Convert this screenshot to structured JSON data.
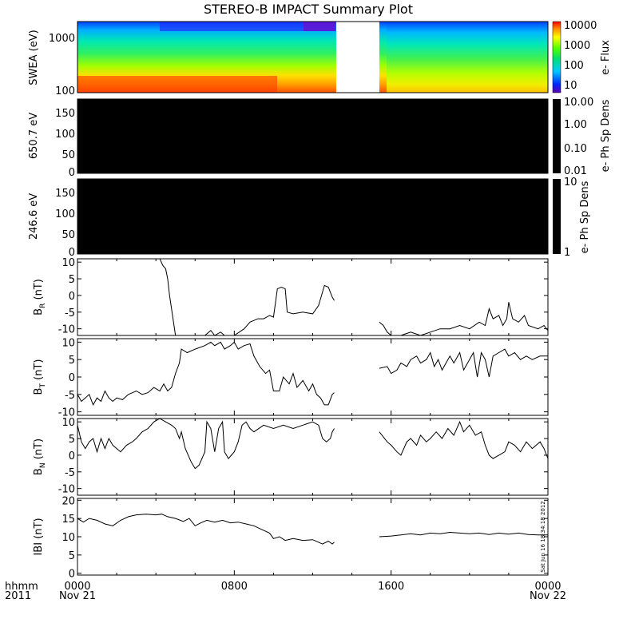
{
  "chart_data": {
    "type": "line",
    "title": "STEREO-B IMPACT Summary Plot",
    "x_range_hours": [
      0,
      24
    ],
    "x_ticks": [
      {
        "label": "0000",
        "sub": "Nov 21",
        "hour": 0
      },
      {
        "label": "0800",
        "sub": "",
        "hour": 8
      },
      {
        "label": "1600",
        "sub": "",
        "hour": 16
      },
      {
        "label": "0000",
        "sub": "Nov 22",
        "hour": 24
      }
    ],
    "x_corner_labels": [
      "hhmm",
      "2011"
    ],
    "data_gap_hours": [
      13.2,
      15.4
    ],
    "timestamp": "Sat Jun 16 18:34:18 2012",
    "spectrogram": {
      "ylabel": "SWEA (eV)",
      "yticks": [
        "1000",
        "100"
      ],
      "colorbar_label": "e- Flux",
      "colorbar_ticks": [
        "10000",
        "1000",
        "100",
        "10"
      ]
    },
    "pad_panels": [
      {
        "ylabel": "650.7 eV",
        "yticks": [
          "150",
          "100",
          "50",
          "0"
        ],
        "colorbar_label": "e- Ph Sp Dens",
        "colorbar_ticks": [
          "10.00",
          "1.00",
          "0.10",
          "0.01"
        ]
      },
      {
        "ylabel": "246.6 eV",
        "yticks": [
          "150",
          "100",
          "50",
          "0"
        ],
        "colorbar_label": "e- Ph Sp Dens",
        "colorbar_ticks": [
          "10",
          "1"
        ]
      }
    ],
    "series": [
      {
        "name": "B_R",
        "ylabel": "B",
        "ysub": "R",
        "yunit": "(nT)",
        "ylim": [
          -12,
          11
        ],
        "yticks": [
          "10",
          "5",
          "0",
          "-5",
          "-10"
        ],
        "points": [
          [
            4.2,
            11
          ],
          [
            4.35,
            9
          ],
          [
            4.5,
            8
          ],
          [
            4.6,
            5
          ],
          [
            4.7,
            0
          ],
          [
            4.85,
            -6
          ],
          [
            5.0,
            -12
          ],
          [
            5.5,
            -12
          ],
          [
            6.5,
            -12
          ],
          [
            6.8,
            -10.5
          ],
          [
            7.0,
            -12
          ],
          [
            7.3,
            -11
          ],
          [
            7.5,
            -12
          ],
          [
            8.0,
            -12
          ],
          [
            8.5,
            -10
          ],
          [
            8.8,
            -8
          ],
          [
            9.2,
            -7
          ],
          [
            9.5,
            -7
          ],
          [
            9.8,
            -6
          ],
          [
            10.0,
            -6.5
          ],
          [
            10.2,
            2
          ],
          [
            10.4,
            2.5
          ],
          [
            10.6,
            2
          ],
          [
            10.7,
            -5
          ],
          [
            11.0,
            -5.5
          ],
          [
            11.5,
            -5
          ],
          [
            12.0,
            -5.5
          ],
          [
            12.3,
            -3
          ],
          [
            12.6,
            3
          ],
          [
            12.8,
            2.5
          ],
          [
            13.0,
            -0.5
          ],
          [
            13.1,
            -1.5
          ],
          [
            null,
            null
          ],
          [
            15.4,
            -8
          ],
          [
            15.6,
            -9
          ],
          [
            15.8,
            -11
          ],
          [
            16.0,
            -12
          ],
          [
            16.5,
            -12
          ],
          [
            17.0,
            -11
          ],
          [
            17.5,
            -12
          ],
          [
            18.0,
            -11
          ],
          [
            18.5,
            -10
          ],
          [
            19.0,
            -10
          ],
          [
            19.5,
            -9
          ],
          [
            20.0,
            -10
          ],
          [
            20.5,
            -8
          ],
          [
            20.8,
            -9
          ],
          [
            21.0,
            -4
          ],
          [
            21.2,
            -7
          ],
          [
            21.5,
            -6
          ],
          [
            21.7,
            -9
          ],
          [
            21.9,
            -7
          ],
          [
            22.0,
            -2
          ],
          [
            22.2,
            -7
          ],
          [
            22.5,
            -8
          ],
          [
            22.8,
            -6
          ],
          [
            23.0,
            -9
          ],
          [
            23.5,
            -10
          ],
          [
            23.8,
            -9
          ],
          [
            24.0,
            -10.5
          ]
        ]
      },
      {
        "name": "B_T",
        "ylabel": "B",
        "ysub": "T",
        "yunit": "(nT)",
        "ylim": [
          -11,
          11
        ],
        "yticks": [
          "10",
          "5",
          "0",
          "-5",
          "-10"
        ],
        "points": [
          [
            0.0,
            -5
          ],
          [
            0.2,
            -7
          ],
          [
            0.4,
            -6
          ],
          [
            0.6,
            -5
          ],
          [
            0.8,
            -8
          ],
          [
            1.0,
            -6
          ],
          [
            1.2,
            -7
          ],
          [
            1.4,
            -4
          ],
          [
            1.6,
            -6
          ],
          [
            1.8,
            -7
          ],
          [
            2.0,
            -6
          ],
          [
            2.3,
            -6.5
          ],
          [
            2.6,
            -5
          ],
          [
            3.0,
            -4
          ],
          [
            3.3,
            -5
          ],
          [
            3.6,
            -4.5
          ],
          [
            3.9,
            -3
          ],
          [
            4.2,
            -4
          ],
          [
            4.4,
            -2
          ],
          [
            4.6,
            -4
          ],
          [
            4.8,
            -3
          ],
          [
            5.0,
            1
          ],
          [
            5.2,
            4
          ],
          [
            5.3,
            8
          ],
          [
            5.6,
            7
          ],
          [
            6.0,
            8
          ],
          [
            6.5,
            9
          ],
          [
            6.8,
            10
          ],
          [
            7.0,
            9
          ],
          [
            7.3,
            10
          ],
          [
            7.5,
            8
          ],
          [
            7.8,
            9
          ],
          [
            8.0,
            10
          ],
          [
            8.2,
            8
          ],
          [
            8.5,
            9
          ],
          [
            8.8,
            9.5
          ],
          [
            9.0,
            6
          ],
          [
            9.3,
            3
          ],
          [
            9.6,
            1
          ],
          [
            9.8,
            2
          ],
          [
            10.0,
            -4
          ],
          [
            10.3,
            -4
          ],
          [
            10.5,
            0
          ],
          [
            10.8,
            -2
          ],
          [
            11.0,
            1
          ],
          [
            11.2,
            -3
          ],
          [
            11.5,
            -1
          ],
          [
            11.8,
            -4
          ],
          [
            12.0,
            -2
          ],
          [
            12.2,
            -5
          ],
          [
            12.4,
            -6
          ],
          [
            12.6,
            -8
          ],
          [
            12.8,
            -8
          ],
          [
            13.0,
            -5
          ],
          [
            13.1,
            -4.5
          ],
          [
            null,
            null
          ],
          [
            15.4,
            2.5
          ],
          [
            15.8,
            3
          ],
          [
            16.0,
            1
          ],
          [
            16.3,
            2
          ],
          [
            16.5,
            4
          ],
          [
            16.8,
            3
          ],
          [
            17.0,
            5
          ],
          [
            17.3,
            6
          ],
          [
            17.5,
            4
          ],
          [
            17.8,
            5
          ],
          [
            18.0,
            7
          ],
          [
            18.2,
            3
          ],
          [
            18.4,
            5
          ],
          [
            18.6,
            2
          ],
          [
            18.8,
            4
          ],
          [
            19.0,
            6
          ],
          [
            19.2,
            4
          ],
          [
            19.5,
            7
          ],
          [
            19.7,
            2
          ],
          [
            20.0,
            5
          ],
          [
            20.2,
            7
          ],
          [
            20.4,
            0
          ],
          [
            20.6,
            7
          ],
          [
            20.8,
            5
          ],
          [
            21.0,
            0
          ],
          [
            21.2,
            6
          ],
          [
            21.5,
            7
          ],
          [
            21.8,
            8
          ],
          [
            22.0,
            6
          ],
          [
            22.3,
            7
          ],
          [
            22.6,
            5
          ],
          [
            22.9,
            6
          ],
          [
            23.2,
            5
          ],
          [
            23.6,
            6
          ],
          [
            24.0,
            6
          ]
        ]
      },
      {
        "name": "B_N",
        "ylabel": "B",
        "ysub": "N",
        "yunit": "(nT)",
        "ylim": [
          -12,
          11
        ],
        "yticks": [
          "10",
          "5",
          "0",
          "-5",
          "-10"
        ],
        "points": [
          [
            0.0,
            9
          ],
          [
            0.2,
            4
          ],
          [
            0.4,
            2
          ],
          [
            0.6,
            4
          ],
          [
            0.8,
            5
          ],
          [
            1.0,
            1
          ],
          [
            1.2,
            5
          ],
          [
            1.4,
            2
          ],
          [
            1.6,
            5
          ],
          [
            1.8,
            3
          ],
          [
            2.0,
            2
          ],
          [
            2.2,
            1
          ],
          [
            2.5,
            3
          ],
          [
            2.8,
            4
          ],
          [
            3.0,
            5
          ],
          [
            3.3,
            7
          ],
          [
            3.6,
            8
          ],
          [
            3.9,
            10
          ],
          [
            4.2,
            11
          ],
          [
            4.5,
            10
          ],
          [
            4.8,
            9
          ],
          [
            5.0,
            8
          ],
          [
            5.2,
            5
          ],
          [
            5.3,
            7
          ],
          [
            5.5,
            2
          ],
          [
            5.8,
            -2
          ],
          [
            6.0,
            -4
          ],
          [
            6.2,
            -3
          ],
          [
            6.5,
            1
          ],
          [
            6.6,
            10
          ],
          [
            6.8,
            8
          ],
          [
            7.0,
            1
          ],
          [
            7.2,
            8
          ],
          [
            7.4,
            10
          ],
          [
            7.5,
            1
          ],
          [
            7.7,
            -1
          ],
          [
            8.0,
            1
          ],
          [
            8.2,
            4
          ],
          [
            8.4,
            9
          ],
          [
            8.6,
            10
          ],
          [
            8.8,
            8
          ],
          [
            9.0,
            7
          ],
          [
            9.5,
            9
          ],
          [
            10.0,
            8
          ],
          [
            10.5,
            9
          ],
          [
            11.0,
            8
          ],
          [
            11.5,
            9
          ],
          [
            12.0,
            10
          ],
          [
            12.3,
            9
          ],
          [
            12.5,
            5
          ],
          [
            12.7,
            4
          ],
          [
            12.9,
            5
          ],
          [
            13.0,
            7
          ],
          [
            13.1,
            8
          ],
          [
            null,
            null
          ],
          [
            15.4,
            7
          ],
          [
            15.8,
            4
          ],
          [
            16.0,
            3
          ],
          [
            16.3,
            1
          ],
          [
            16.5,
            0
          ],
          [
            16.8,
            4
          ],
          [
            17.0,
            5
          ],
          [
            17.3,
            3
          ],
          [
            17.5,
            6
          ],
          [
            17.8,
            4
          ],
          [
            18.0,
            5
          ],
          [
            18.3,
            7
          ],
          [
            18.6,
            5
          ],
          [
            18.9,
            8
          ],
          [
            19.2,
            6
          ],
          [
            19.5,
            10
          ],
          [
            19.7,
            7
          ],
          [
            20.0,
            9
          ],
          [
            20.3,
            6
          ],
          [
            20.6,
            7
          ],
          [
            20.8,
            3
          ],
          [
            21.0,
            0
          ],
          [
            21.2,
            -1
          ],
          [
            21.5,
            0
          ],
          [
            21.8,
            1
          ],
          [
            22.0,
            4
          ],
          [
            22.3,
            3
          ],
          [
            22.6,
            1
          ],
          [
            22.9,
            4
          ],
          [
            23.2,
            2
          ],
          [
            23.6,
            4
          ],
          [
            23.8,
            2
          ],
          [
            24.0,
            -1
          ]
        ]
      },
      {
        "name": "|B|",
        "ylabel": "IBI",
        "ysub": "",
        "yunit": "(nT)",
        "ylim": [
          -0.5,
          20.5
        ],
        "yticks": [
          "20",
          "15",
          "10",
          "5",
          "0"
        ],
        "points": [
          [
            0.0,
            15
          ],
          [
            0.3,
            14
          ],
          [
            0.6,
            15
          ],
          [
            1.0,
            14.5
          ],
          [
            1.4,
            13.5
          ],
          [
            1.8,
            13
          ],
          [
            2.2,
            14.5
          ],
          [
            2.6,
            15.5
          ],
          [
            3.0,
            16
          ],
          [
            3.5,
            16.2
          ],
          [
            4.0,
            16
          ],
          [
            4.3,
            16.2
          ],
          [
            4.6,
            15.5
          ],
          [
            5.0,
            15
          ],
          [
            5.4,
            14.2
          ],
          [
            5.7,
            15
          ],
          [
            6.0,
            13
          ],
          [
            6.3,
            13.8
          ],
          [
            6.6,
            14.5
          ],
          [
            7.0,
            14
          ],
          [
            7.4,
            14.5
          ],
          [
            7.8,
            13.8
          ],
          [
            8.2,
            14
          ],
          [
            8.6,
            13.5
          ],
          [
            9.0,
            13
          ],
          [
            9.4,
            12
          ],
          [
            9.8,
            11
          ],
          [
            10.0,
            9.5
          ],
          [
            10.3,
            10
          ],
          [
            10.6,
            9
          ],
          [
            11.0,
            9.5
          ],
          [
            11.5,
            9
          ],
          [
            12.0,
            9.2
          ],
          [
            12.5,
            8
          ],
          [
            12.8,
            8.8
          ],
          [
            13.0,
            8
          ],
          [
            13.1,
            8.5
          ],
          [
            null,
            null
          ],
          [
            15.4,
            10
          ],
          [
            16.0,
            10.2
          ],
          [
            16.5,
            10.5
          ],
          [
            17.0,
            10.8
          ],
          [
            17.5,
            10.5
          ],
          [
            18.0,
            11
          ],
          [
            18.5,
            10.8
          ],
          [
            19.0,
            11.2
          ],
          [
            19.5,
            11
          ],
          [
            20.0,
            10.8
          ],
          [
            20.5,
            11
          ],
          [
            21.0,
            10.6
          ],
          [
            21.5,
            11
          ],
          [
            22.0,
            10.7
          ],
          [
            22.5,
            11
          ],
          [
            23.0,
            10.6
          ],
          [
            23.5,
            10.5
          ],
          [
            24.0,
            10.5
          ]
        ]
      }
    ],
    "colors": {
      "line": "#000000",
      "panel_fill": "#000000",
      "background": "#ffffff"
    }
  }
}
